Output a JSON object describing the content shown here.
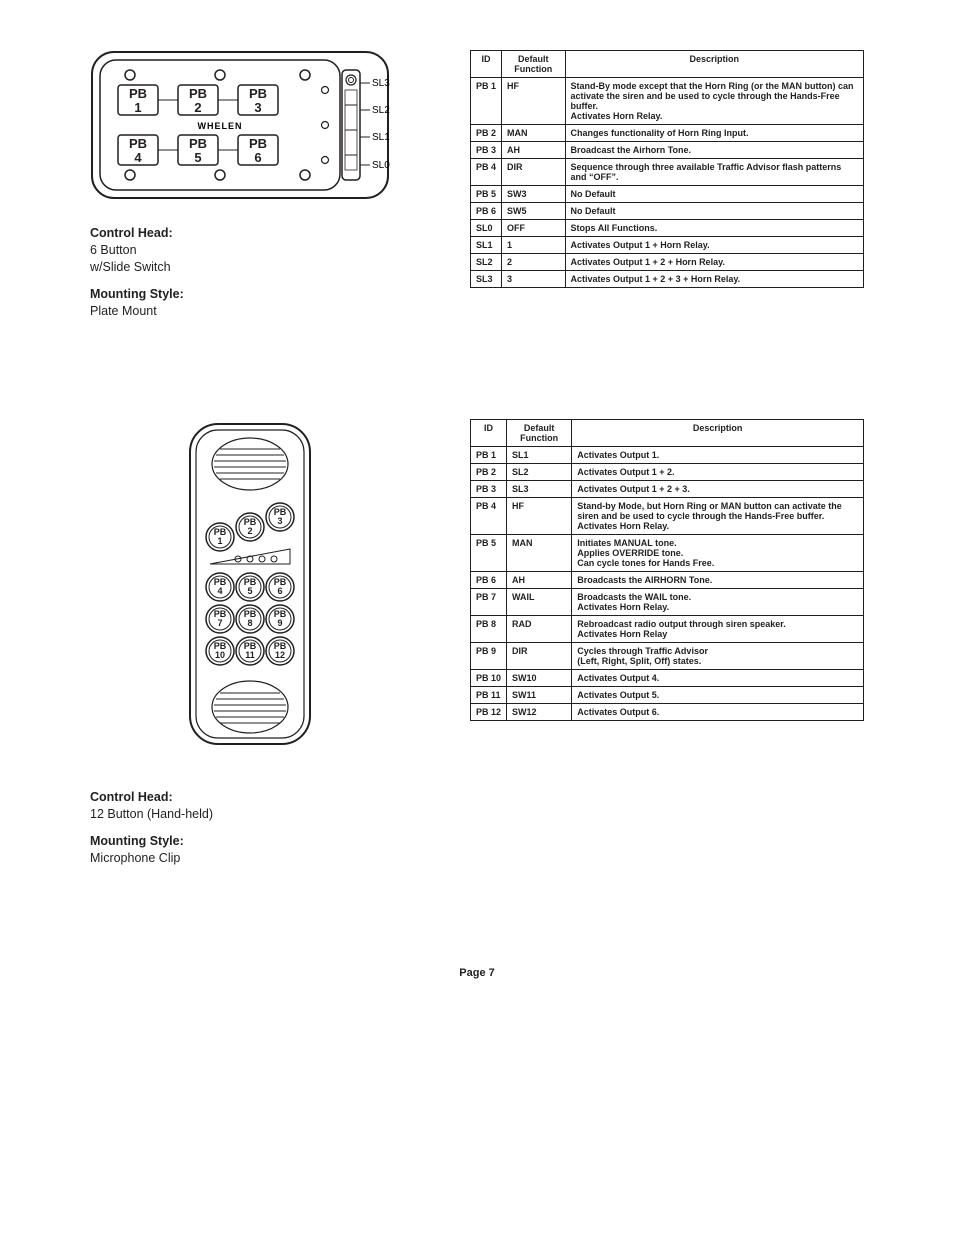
{
  "section1": {
    "controlHeadLabel": "Control Head:",
    "controlHeadValue1": "6 Button",
    "controlHeadValue2": "w/Slide Switch",
    "mountingLabel": "Mounting Style:",
    "mountingValue": "Plate Mount",
    "diagram": {
      "buttons": [
        {
          "line1": "PB",
          "line2": "1"
        },
        {
          "line1": "PB",
          "line2": "2"
        },
        {
          "line1": "PB",
          "line2": "3"
        },
        {
          "line1": "PB",
          "line2": "4"
        },
        {
          "line1": "PB",
          "line2": "5"
        },
        {
          "line1": "PB",
          "line2": "6"
        }
      ],
      "brand": "WHELEN",
      "slideLabels": [
        "SL3",
        "SL2",
        "SL1",
        "SL0"
      ]
    },
    "tableHeaders": {
      "id": "ID",
      "def": "Default Function",
      "desc": "Description"
    },
    "rows": [
      {
        "id": "PB 1",
        "def": "HF",
        "desc": "Stand-By mode except that the Horn Ring (or the MAN button) can activate the siren and be used to cycle through the Hands-Free buffer.\nActivates Horn Relay."
      },
      {
        "id": "PB 2",
        "def": "MAN",
        "desc": "Changes functionality of Horn Ring Input."
      },
      {
        "id": "PB 3",
        "def": "AH",
        "desc": "Broadcast the Airhorn Tone."
      },
      {
        "id": "PB 4",
        "def": "DIR",
        "desc": "Sequence through three available Traffic Advisor flash patterns and “OFF”."
      },
      {
        "id": "PB 5",
        "def": "SW3",
        "desc": "No Default"
      },
      {
        "id": "PB 6",
        "def": "SW5",
        "desc": "No Default"
      },
      {
        "id": "SL0",
        "def": "OFF",
        "desc": "Stops All Functions."
      },
      {
        "id": "SL1",
        "def": "1",
        "desc": "Activates Output 1 + Horn Relay."
      },
      {
        "id": "SL2",
        "def": "2",
        "desc": "Activates Output 1 + 2 + Horn Relay."
      },
      {
        "id": "SL3",
        "def": "3",
        "desc": "Activates Output 1 + 2 + 3 + Horn Relay."
      }
    ]
  },
  "section2": {
    "controlHeadLabel": "Control Head:",
    "controlHeadValue1": "12 Button (Hand-held)",
    "mountingLabel": "Mounting Style:",
    "mountingValue": "Microphone Clip",
    "diagram": {
      "buttons": [
        {
          "l1": "PB",
          "l2": "1"
        },
        {
          "l1": "PB",
          "l2": "2"
        },
        {
          "l1": "PB",
          "l2": "3"
        },
        {
          "l1": "PB",
          "l2": "4"
        },
        {
          "l1": "PB",
          "l2": "5"
        },
        {
          "l1": "PB",
          "l2": "6"
        },
        {
          "l1": "PB",
          "l2": "7"
        },
        {
          "l1": "PB",
          "l2": "8"
        },
        {
          "l1": "PB",
          "l2": "9"
        },
        {
          "l1": "PB",
          "l2": "10"
        },
        {
          "l1": "PB",
          "l2": "11"
        },
        {
          "l1": "PB",
          "l2": "12"
        }
      ]
    },
    "tableHeaders": {
      "id": "ID",
      "def": "Default Function",
      "desc": "Description"
    },
    "rows": [
      {
        "id": "PB 1",
        "def": "SL1",
        "desc": "Activates Output 1."
      },
      {
        "id": "PB 2",
        "def": "SL2",
        "desc": "Activates Output 1 + 2."
      },
      {
        "id": "PB 3",
        "def": "SL3",
        "desc": "Activates Output 1 + 2 + 3."
      },
      {
        "id": "PB 4",
        "def": "HF",
        "desc": "Stand-by Mode, but Horn Ring or MAN button can activate the siren and be used to cycle through the Hands-Free buffer.\nActivates Horn Relay."
      },
      {
        "id": "PB 5",
        "def": "MAN",
        "desc": "Initiates MANUAL tone.\nApplies OVERRIDE tone.\nCan cycle tones for Hands Free."
      },
      {
        "id": "PB 6",
        "def": "AH",
        "desc": "Broadcasts the AIRHORN Tone."
      },
      {
        "id": "PB 7",
        "def": "WAIL",
        "desc": "Broadcasts the WAIL tone.\nActivates Horn Relay."
      },
      {
        "id": "PB 8",
        "def": "RAD",
        "desc": "Rebroadcast radio output through siren speaker.\nActivates Horn Relay"
      },
      {
        "id": "PB 9",
        "def": "DIR",
        "desc": "Cycles through Traffic Advisor\n(Left, Right, Split, Off) states."
      },
      {
        "id": "PB 10",
        "def": "SW10",
        "desc": "Activates Output 4."
      },
      {
        "id": "PB 11",
        "def": "SW11",
        "desc": "Activates Output 5."
      },
      {
        "id": "PB 12",
        "def": "SW12",
        "desc": "Activates Output 6."
      }
    ]
  },
  "pageNumber": "Page 7"
}
